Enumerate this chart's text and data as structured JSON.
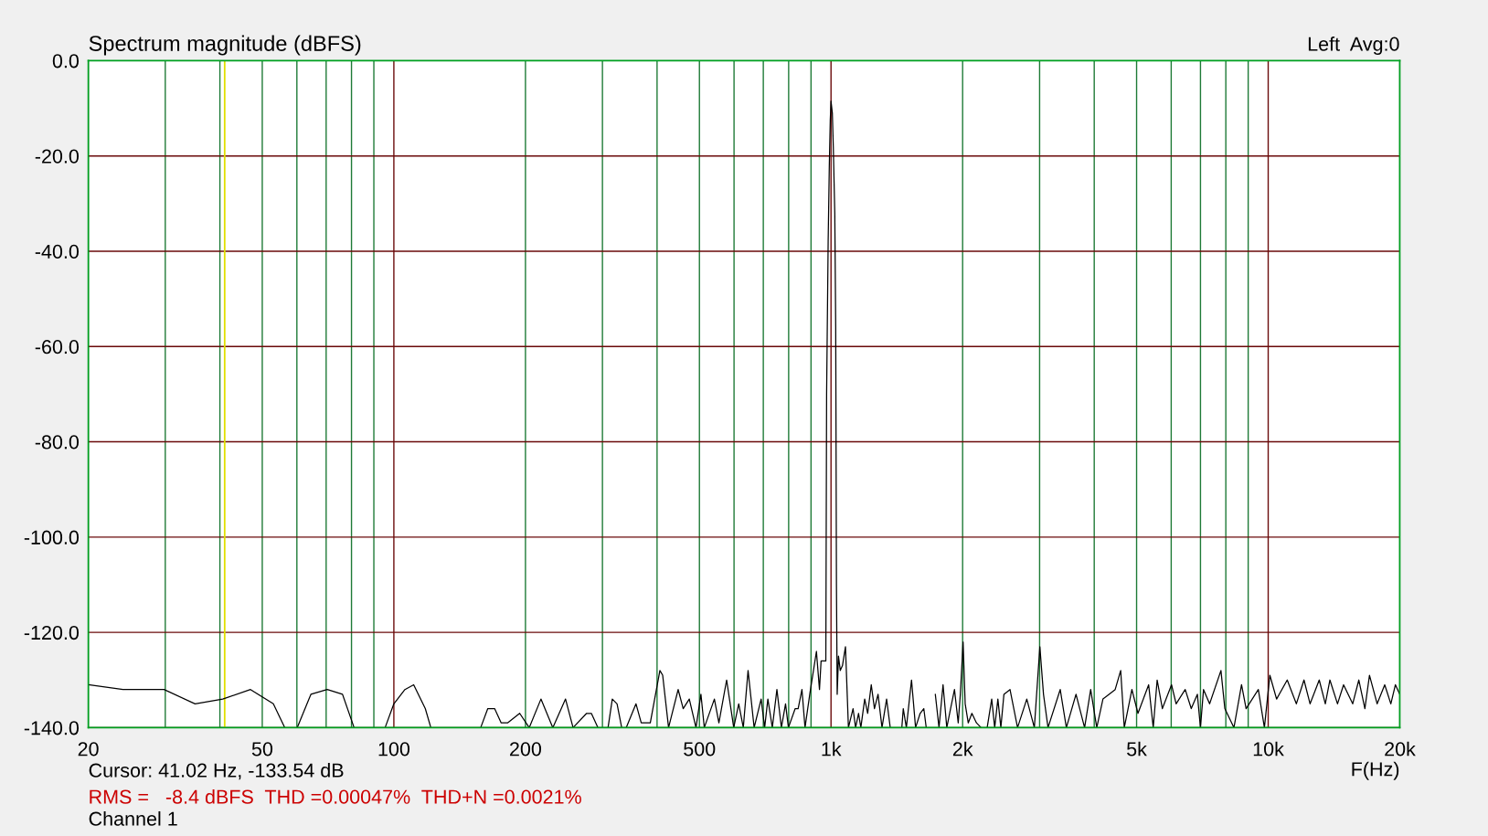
{
  "chart_data": {
    "type": "line",
    "ylabel": "Spectrum magnitude (dBFS)",
    "xlabel": "F(Hz)",
    "annotations": [
      "Left  Avg:0",
      "Cursor: 41.02 Hz, -133.54 dB",
      "RMS =   -8.4 dBFS  THD =0.00047%  THD+N =0.0021%",
      "Channel 1"
    ],
    "log": "x",
    "grid": true,
    "xlim": [
      20,
      20000
    ],
    "ylim": [
      -140,
      0
    ],
    "xticks": [
      20,
      {
        "value": 30,
        "label": null
      },
      {
        "value": 40,
        "label": null
      },
      50,
      {
        "value": 60,
        "label": null
      },
      {
        "value": 70,
        "label": null
      },
      {
        "value": 80,
        "label": null
      },
      {
        "value": 90,
        "label": null
      },
      100,
      200,
      {
        "value": 300,
        "label": null
      },
      {
        "value": 400,
        "label": null
      },
      500,
      {
        "value": 600,
        "label": null
      },
      {
        "value": 700,
        "label": null
      },
      {
        "value": 800,
        "label": null
      },
      {
        "value": 900,
        "label": null
      },
      {
        "value": 1000,
        "label": "1k"
      },
      {
        "value": 2000,
        "label": "2k"
      },
      {
        "value": 3000,
        "label": null
      },
      {
        "value": 4000,
        "label": null
      },
      {
        "value": 5000,
        "label": "5k"
      },
      {
        "value": 6000,
        "label": null
      },
      {
        "value": 7000,
        "label": null
      },
      {
        "value": 8000,
        "label": null
      },
      {
        "value": 9000,
        "label": null
      },
      {
        "value": 10000,
        "label": "10k"
      },
      {
        "value": 20000,
        "label": "20k"
      }
    ],
    "yticks": [
      {
        "value": 0,
        "label": "0.0"
      },
      {
        "value": -20,
        "label": "-20.0"
      },
      {
        "value": -40,
        "label": "-40.0"
      },
      {
        "value": -60,
        "label": "-60.0"
      },
      {
        "value": -80,
        "label": "-80.0"
      },
      {
        "value": -100,
        "label": "-100.0"
      },
      {
        "value": -120,
        "label": "-120.0"
      },
      {
        "value": -140,
        "label": "-140.0"
      }
    ],
    "ref_lines": [
      {
        "axis": "x",
        "value": 41.02,
        "color": "#e0e000"
      }
    ],
    "x": [
      20,
      24,
      29.8,
      35.1,
      40.6,
      47,
      53,
      56.3,
      58.2,
      60.1,
      64.6,
      70.4,
      76.3,
      81.1,
      88,
      95.5,
      100,
      106,
      111,
      118,
      121.5,
      140,
      158,
      164,
      170,
      176,
      182,
      194,
      204,
      217,
      231,
      247,
      257,
      276,
      283,
      293,
      300,
      309,
      316,
      324,
      332,
      336,
      340,
      358,
      368,
      374,
      386,
      406,
      412,
      425,
      447,
      459,
      474,
      491,
      504,
      513,
      541,
      554,
      577,
      599,
      615,
      630,
      646,
      667,
      692,
      705,
      717,
      734,
      752,
      770,
      787,
      799,
      828,
      841,
      858,
      872,
      894,
      926,
      941,
      949,
      973,
      977,
      980,
      985,
      991,
      996,
      1000,
      1007,
      1012,
      1020,
      1025,
      1029,
      1033,
      1040,
      1050,
      1062,
      1079,
      1096,
      1123,
      1138,
      1156,
      1170,
      1194,
      1213,
      1236,
      1257,
      1281,
      1308,
      1340,
      1366,
      1410,
      1452,
      1463,
      1487,
      1528,
      1561,
      1599,
      1630,
      1651,
      1690,
      1732,
      1766,
      1804,
      1840,
      1877,
      1916,
      1954,
      1976,
      2005,
      2027,
      2060,
      2100,
      2151,
      2204,
      2240,
      2276,
      2331,
      2368,
      2408,
      2446,
      2486,
      2567,
      2671,
      2804,
      2918,
      3004,
      3062,
      3136,
      3344,
      3454,
      3634,
      3802,
      3926,
      4054,
      4188,
      4467,
      4598,
      4686,
      4878,
      5036,
      5328,
      5458,
      5572,
      5727,
      6010,
      6157,
      6459,
      6668,
      6886,
      6999,
      7113,
      7345,
      7797,
      7958,
      8350,
      8690,
      8902,
      9494,
      9802,
      10088,
      10452,
      11054,
      11598,
      12074,
      12468,
      13084,
      13510,
      13840,
      14406,
      14874,
      15606,
      16118,
      16640,
      17048,
      17752,
      18474,
      19078,
      19544,
      20000
    ],
    "series": [
      {
        "color": "#000000",
        "values": [
          -131,
          -132,
          -132,
          -135,
          -134,
          -132,
          -135,
          -140,
          null,
          -140,
          -133,
          -132,
          -133,
          -140,
          null,
          -140,
          -135,
          -132,
          -131,
          -136,
          -140,
          null,
          -140,
          -136,
          -136,
          -139,
          -139,
          -137,
          -140,
          -134,
          -140,
          -134,
          -140,
          -137,
          -137,
          -140,
          null,
          -140,
          -134,
          -135,
          -140,
          null,
          -140,
          -135,
          -139,
          -139,
          -139,
          -128,
          -129,
          -140,
          -132,
          -136,
          -134,
          -140,
          -133,
          -140,
          -134,
          -139,
          -130,
          -140,
          -135,
          -140,
          -128,
          -140,
          -134,
          -140,
          -134,
          -140,
          -132,
          -140,
          -135,
          -140,
          -136,
          -136,
          -132,
          -140,
          -133,
          -124,
          -132,
          -126,
          -126,
          -70,
          -58,
          -38,
          -22,
          -12.5,
          -8.5,
          -11,
          -18,
          -32,
          -56,
          -110,
          -133,
          -125,
          -128,
          -127,
          -123,
          -140,
          -136,
          -140,
          -137,
          -140,
          -134,
          -137,
          -131,
          -136,
          -133,
          -140,
          -134,
          -140,
          null,
          -140,
          -136,
          -140,
          -130,
          -140,
          -137,
          -136,
          -140,
          null,
          -133,
          -140,
          -131,
          -140,
          -136,
          -132,
          -139,
          -133,
          -122,
          -135,
          -139,
          -137,
          -139,
          -140,
          null,
          -140,
          -134,
          -140,
          -134,
          -140,
          -133,
          -132,
          -140,
          -134,
          -140,
          -123,
          -133,
          -140,
          -132,
          -140,
          -133,
          -140,
          -132,
          -140,
          -134,
          -132,
          -128,
          -140,
          -132,
          -137,
          -131,
          -140,
          -130,
          -136,
          -131,
          -135,
          -132,
          -136,
          -133,
          -140,
          -132,
          -135,
          -128,
          -136,
          -140,
          -131,
          -136,
          -132,
          -140,
          -129,
          -134,
          -130,
          -135,
          -130,
          -135,
          -130,
          -135,
          -130,
          -135,
          -131,
          -135,
          -130,
          -136,
          -129,
          -135,
          -131,
          -135,
          -131,
          -133
        ]
      }
    ]
  }
}
